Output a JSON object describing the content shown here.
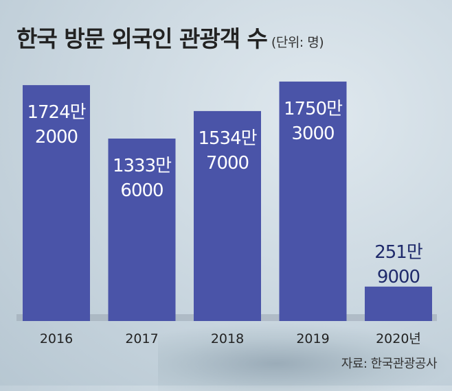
{
  "chart_data": {
    "type": "bar",
    "title": "한국 방문 외국인 관광객 수",
    "unit_note": "(단위: 명)",
    "categories": [
      "2016",
      "2017",
      "2018",
      "2019",
      "2020년"
    ],
    "values": [
      17242000,
      13336000,
      15347000,
      17503000,
      2519000
    ],
    "data_labels": [
      [
        "1724만",
        "2000"
      ],
      [
        "1333만",
        "6000"
      ],
      [
        "1534만",
        "7000"
      ],
      [
        "1750만",
        "3000"
      ],
      [
        "251만",
        "9000"
      ]
    ],
    "ylim": [
      0,
      18500000
    ],
    "grid": false,
    "bar_color": "#4a54a8",
    "source": "자료: 한국관광공사"
  }
}
